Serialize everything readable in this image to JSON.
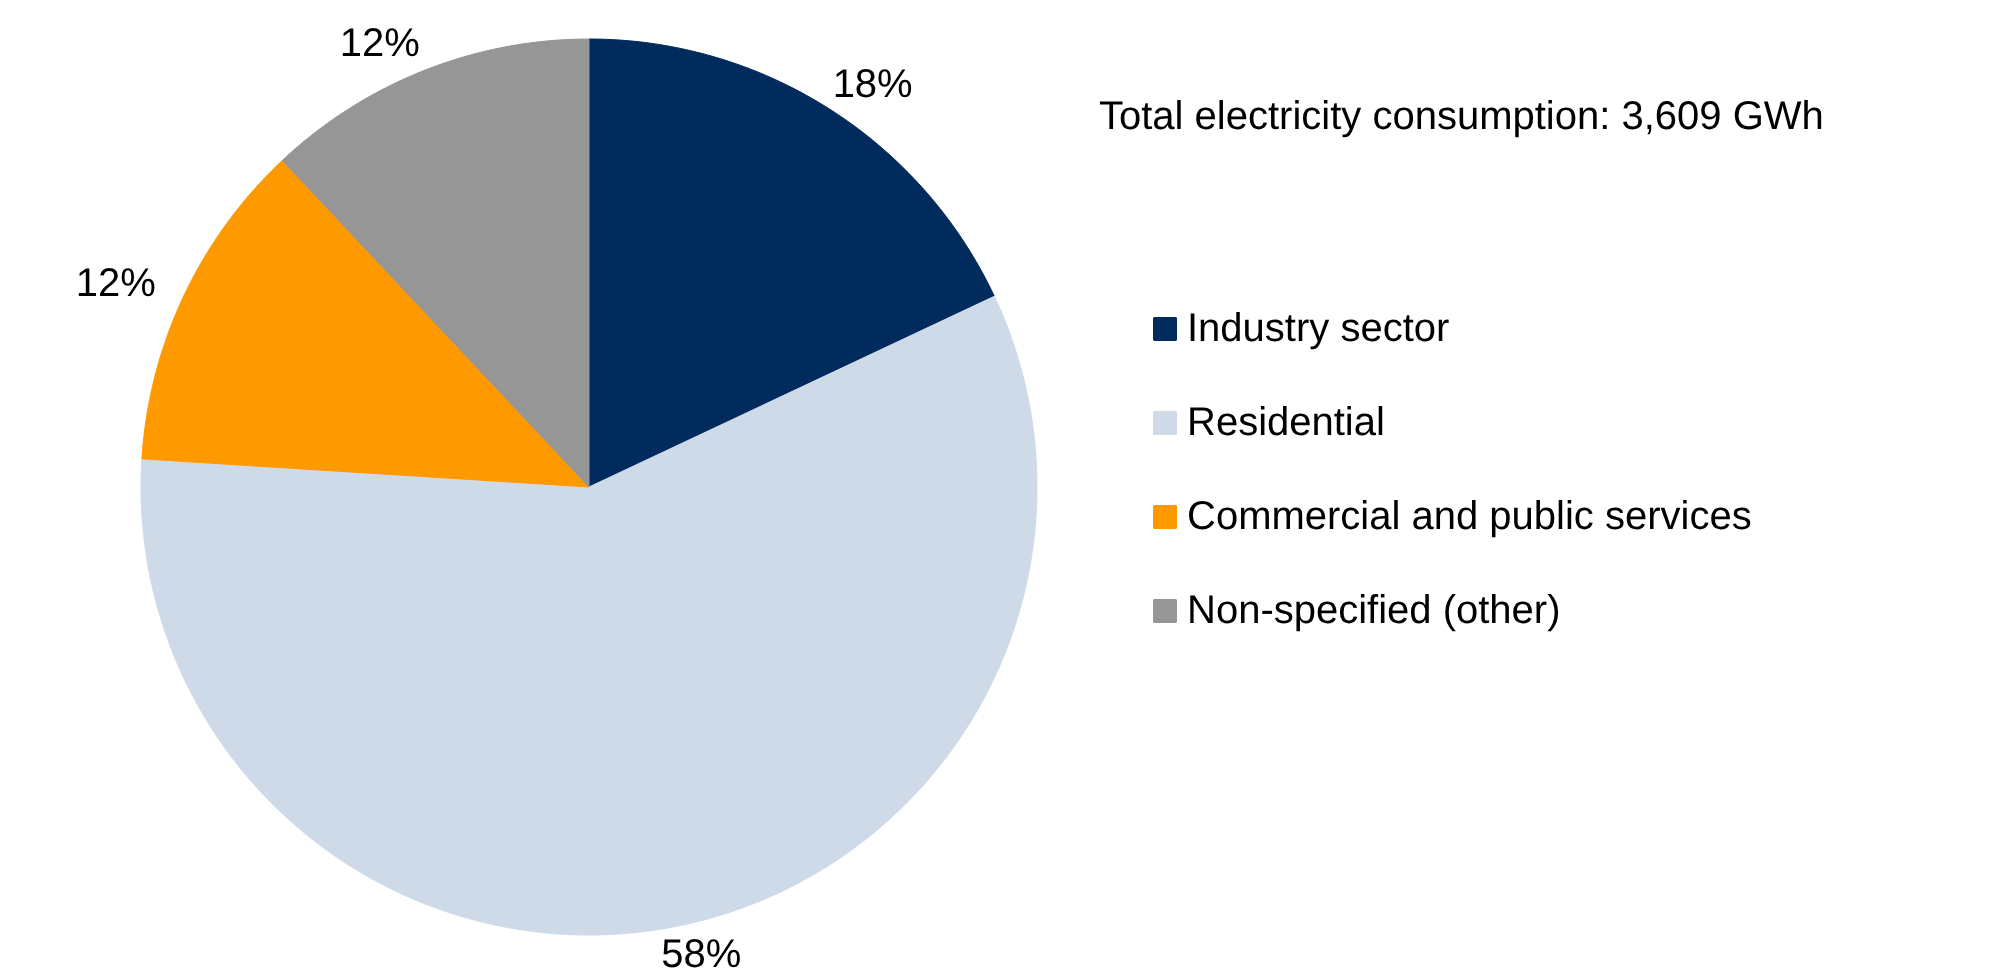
{
  "chart_data": {
    "type": "pie",
    "subtitle": "Total electricity consumption: 3,609 GWh",
    "categories": [
      "Industry sector",
      "Residential",
      "Commercial and public services",
      "Non-specified (other)"
    ],
    "values": [
      18,
      58,
      12,
      12
    ],
    "colors": [
      "#002b5c",
      "#cfdae9",
      "#ff9900",
      "#969696"
    ],
    "value_labels": [
      "18%",
      "58%",
      "12%",
      "12%"
    ],
    "legend": "right"
  }
}
